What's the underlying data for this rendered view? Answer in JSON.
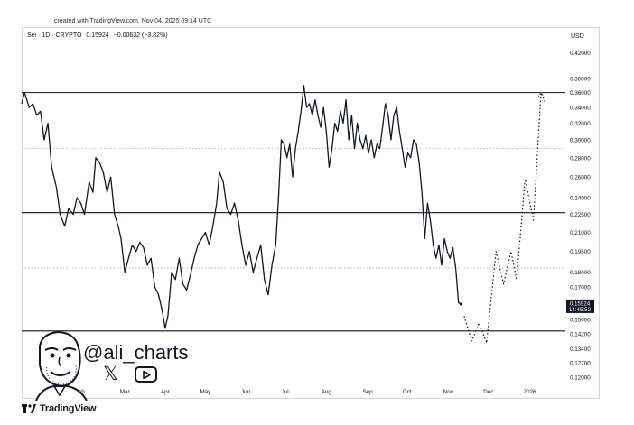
{
  "header": {
    "created_text": "created with TradingView.com, Nov 04, 2025 09:14 UTC",
    "symbol": "Sei · 1D · CRYPTO",
    "price": "0.15924",
    "change": "−0.00632 (−3.82%)",
    "currency": "USD"
  },
  "watermark": {
    "handle": "@ali_charts",
    "x_icon": "x-logo-icon",
    "youtube_icon": "youtube-icon",
    "avatar": "caricature-avatar"
  },
  "brand": {
    "text": "TradingView",
    "logo": "tradingview-logo-icon"
  },
  "colors": {
    "line": "#131722",
    "level": "#131722",
    "dotted": "#9aa0a6",
    "label_bg": "#131722"
  },
  "chart_data": {
    "type": "line",
    "title": "Sei · 1D · CRYPTO",
    "y_scale": "log",
    "ylim": [
      0.112,
      0.44
    ],
    "y_ticks": [
      0.42,
      0.38,
      0.36,
      0.34,
      0.32,
      0.3,
      0.28,
      0.26,
      0.24,
      0.225,
      0.21,
      0.195,
      0.18,
      0.17,
      0.16,
      0.15,
      0.142,
      0.134,
      0.127,
      0.12
    ],
    "y_tick_labels": [
      "0.42000",
      "0.38000",
      "0.36000",
      "0.34000",
      "0.32000",
      "0.30000",
      "0.28000",
      "0.26000",
      "0.24000",
      "0.22500",
      "0.21000",
      "0.19500",
      "0.18000",
      "0.17000",
      "0.16000",
      "0.15000",
      "0.14200",
      "0.13400",
      "0.12700",
      "0.12000"
    ],
    "x_ticks": [
      {
        "label": "Feb",
        "t": 6.2
      },
      {
        "label": "Mar",
        "t": 11.0
      },
      {
        "label": "Apr",
        "t": 15.3
      },
      {
        "label": "May",
        "t": 19.6
      },
      {
        "label": "Jun",
        "t": 23.9
      },
      {
        "label": "Jul",
        "t": 28.1
      },
      {
        "label": "Aug",
        "t": 32.5
      },
      {
        "label": "Sep",
        "t": 36.9
      },
      {
        "label": "Oct",
        "t": 41.1
      },
      {
        "label": "Nov",
        "t": 45.5
      },
      {
        "label": "Dec",
        "t": 49.8
      },
      {
        "label": "2026",
        "t": 54.2
      }
    ],
    "x_unit": "week",
    "last_price_label": "0.15924",
    "countdown_label": "14:45:52",
    "horizontal_levels": [
      {
        "value": 0.36,
        "style": "solid"
      },
      {
        "value": 0.29,
        "style": "dotted"
      },
      {
        "value": 0.2265,
        "style": "solid"
      },
      {
        "value": 0.183,
        "style": "dotted"
      },
      {
        "value": 0.1435,
        "style": "solid"
      }
    ],
    "series": [
      {
        "style": "solid",
        "points": [
          [
            0.0,
            0.345
          ],
          [
            0.3,
            0.36
          ],
          [
            0.8,
            0.34
          ],
          [
            1.2,
            0.345
          ],
          [
            1.6,
            0.33
          ],
          [
            2.0,
            0.335
          ],
          [
            2.4,
            0.3
          ],
          [
            2.8,
            0.32
          ],
          [
            3.2,
            0.27
          ],
          [
            3.7,
            0.25
          ],
          [
            4.1,
            0.225
          ],
          [
            4.6,
            0.215
          ],
          [
            5.0,
            0.23
          ],
          [
            5.5,
            0.225
          ],
          [
            5.9,
            0.24
          ],
          [
            6.3,
            0.235
          ],
          [
            6.7,
            0.225
          ],
          [
            7.2,
            0.255
          ],
          [
            7.6,
            0.245
          ],
          [
            7.9,
            0.28
          ],
          [
            8.3,
            0.275
          ],
          [
            8.7,
            0.265
          ],
          [
            9.1,
            0.245
          ],
          [
            9.5,
            0.26
          ],
          [
            9.9,
            0.225
          ],
          [
            10.3,
            0.215
          ],
          [
            10.6,
            0.205
          ],
          [
            11.0,
            0.18
          ],
          [
            11.4,
            0.19
          ],
          [
            11.8,
            0.2
          ],
          [
            12.2,
            0.195
          ],
          [
            12.6,
            0.202
          ],
          [
            13.0,
            0.198
          ],
          [
            13.4,
            0.185
          ],
          [
            13.8,
            0.19
          ],
          [
            14.2,
            0.17
          ],
          [
            14.6,
            0.165
          ],
          [
            15.0,
            0.155
          ],
          [
            15.3,
            0.145
          ],
          [
            15.6,
            0.152
          ],
          [
            16.0,
            0.18
          ],
          [
            16.4,
            0.175
          ],
          [
            16.8,
            0.19
          ],
          [
            17.2,
            0.172
          ],
          [
            17.6,
            0.168
          ],
          [
            18.0,
            0.178
          ],
          [
            18.4,
            0.19
          ],
          [
            18.8,
            0.2
          ],
          [
            19.2,
            0.205
          ],
          [
            19.6,
            0.21
          ],
          [
            20.0,
            0.2
          ],
          [
            20.4,
            0.215
          ],
          [
            20.8,
            0.235
          ],
          [
            21.1,
            0.265
          ],
          [
            21.5,
            0.255
          ],
          [
            21.9,
            0.23
          ],
          [
            22.3,
            0.225
          ],
          [
            22.7,
            0.235
          ],
          [
            23.1,
            0.22
          ],
          [
            23.5,
            0.2
          ],
          [
            23.9,
            0.185
          ],
          [
            24.3,
            0.195
          ],
          [
            24.7,
            0.18
          ],
          [
            25.1,
            0.19
          ],
          [
            25.5,
            0.2
          ],
          [
            25.9,
            0.175
          ],
          [
            26.3,
            0.165
          ],
          [
            26.7,
            0.185
          ],
          [
            27.1,
            0.2
          ],
          [
            27.4,
            0.24
          ],
          [
            27.7,
            0.3
          ],
          [
            28.0,
            0.295
          ],
          [
            28.3,
            0.28
          ],
          [
            28.6,
            0.295
          ],
          [
            28.9,
            0.26
          ],
          [
            29.2,
            0.29
          ],
          [
            29.5,
            0.31
          ],
          [
            29.8,
            0.335
          ],
          [
            30.1,
            0.37
          ],
          [
            30.4,
            0.34
          ],
          [
            30.7,
            0.345
          ],
          [
            31.0,
            0.33
          ],
          [
            31.3,
            0.35
          ],
          [
            31.6,
            0.33
          ],
          [
            31.9,
            0.315
          ],
          [
            32.2,
            0.34
          ],
          [
            32.5,
            0.31
          ],
          [
            32.8,
            0.27
          ],
          [
            33.1,
            0.29
          ],
          [
            33.4,
            0.32
          ],
          [
            33.7,
            0.31
          ],
          [
            34.0,
            0.335
          ],
          [
            34.3,
            0.32
          ],
          [
            34.6,
            0.35
          ],
          [
            34.9,
            0.3
          ],
          [
            35.2,
            0.33
          ],
          [
            35.5,
            0.29
          ],
          [
            35.8,
            0.32
          ],
          [
            36.1,
            0.3
          ],
          [
            36.4,
            0.29
          ],
          [
            36.7,
            0.305
          ],
          [
            37.0,
            0.285
          ],
          [
            37.3,
            0.3
          ],
          [
            37.6,
            0.28
          ],
          [
            37.9,
            0.295
          ],
          [
            38.2,
            0.29
          ],
          [
            38.5,
            0.315
          ],
          [
            38.8,
            0.345
          ],
          [
            39.1,
            0.33
          ],
          [
            39.4,
            0.3
          ],
          [
            39.7,
            0.33
          ],
          [
            40.0,
            0.34
          ],
          [
            40.3,
            0.31
          ],
          [
            40.6,
            0.29
          ],
          [
            40.9,
            0.27
          ],
          [
            41.2,
            0.285
          ],
          [
            41.5,
            0.28
          ],
          [
            41.8,
            0.3
          ],
          [
            42.1,
            0.295
          ],
          [
            42.4,
            0.275
          ],
          [
            42.7,
            0.245
          ],
          [
            43.0,
            0.205
          ],
          [
            43.3,
            0.235
          ],
          [
            43.6,
            0.22
          ],
          [
            43.9,
            0.2
          ],
          [
            44.2,
            0.19
          ],
          [
            44.5,
            0.2
          ],
          [
            44.8,
            0.185
          ],
          [
            45.1,
            0.205
          ],
          [
            45.4,
            0.195
          ],
          [
            45.7,
            0.19
          ],
          [
            46.0,
            0.198
          ],
          [
            46.3,
            0.183
          ],
          [
            46.6,
            0.16
          ],
          [
            46.85,
            0.15924
          ]
        ]
      },
      {
        "style": "dotted",
        "points": [
          [
            47.2,
            0.152
          ],
          [
            48.0,
            0.138
          ],
          [
            48.8,
            0.148
          ],
          [
            49.6,
            0.137
          ],
          [
            50.6,
            0.195
          ],
          [
            51.4,
            0.172
          ],
          [
            52.2,
            0.195
          ],
          [
            52.8,
            0.175
          ],
          [
            53.7,
            0.258
          ],
          [
            54.6,
            0.22
          ],
          [
            55.4,
            0.36
          ],
          [
            55.9,
            0.345
          ]
        ]
      }
    ]
  }
}
